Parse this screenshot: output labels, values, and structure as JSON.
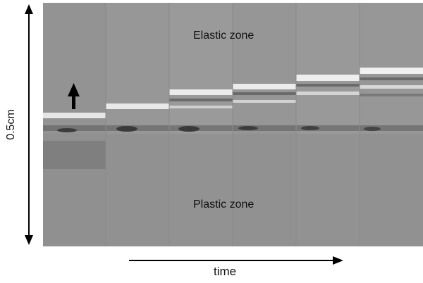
{
  "labels": {
    "elastic_zone": "Elastic zone",
    "plastic_zone": "Plastic zone",
    "time_axis": "time",
    "scale": "0.5cm"
  },
  "image": {
    "panel_count": 6,
    "background": "#8f8f8f",
    "band_color": "#e8e8e8",
    "dark_band_color": "#4a4a4a",
    "arrow_color": "#000000"
  }
}
